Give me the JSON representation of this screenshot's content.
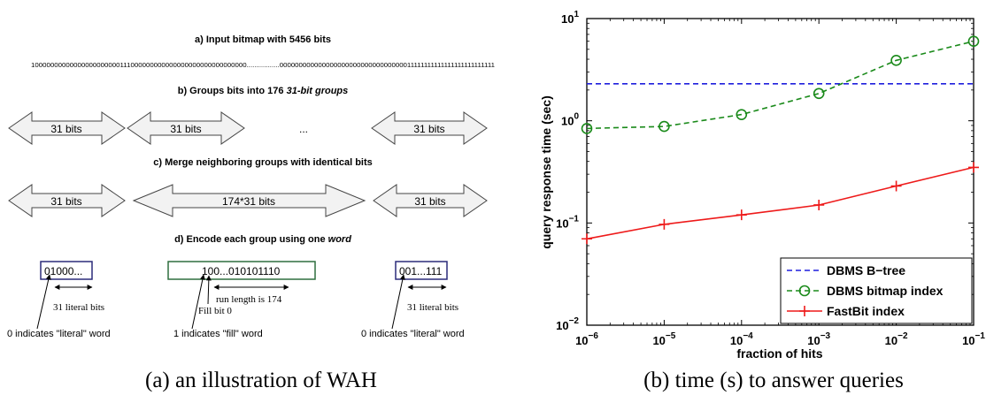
{
  "wah": {
    "step_a": "a) Input bitmap with 5456 bits",
    "bitstring": "10000000000000000000000111000000000000000000000000000000.................00000000000000000000000000000000011111111111111111111111111",
    "step_b_prefix": "b) Groups bits into 176 ",
    "step_b_emph": "31-bit groups",
    "group_31": "31 bits",
    "ellipsis": "...",
    "step_c": "c) Merge neighboring groups with identical bits",
    "merged": "174*31 bits",
    "step_d_prefix": "d) Encode each group using one ",
    "step_d_emph": "word",
    "word_left": "01000...",
    "word_middle": "100...010101110",
    "word_right": "001...111",
    "literal_bits": "31 literal bits",
    "run_length": "run length is 174",
    "fill_bit": "Fill bit 0",
    "literal_note": "0 indicates \"literal\" word",
    "fill_note": "1 indicates \"fill\" word",
    "colors": {
      "word_left_border": "#2b2b7a",
      "word_middle_border": "#2f6f3f",
      "word_right_border": "#2b2b7a",
      "arrow_fill": "#f2f2f2"
    }
  },
  "captions": {
    "left": "(a) an illustration of WAH",
    "right": "(b) time (s) to answer queries"
  },
  "chart_data": {
    "type": "line",
    "xlabel": "fraction of hits",
    "ylabel": "query response time (sec)",
    "xscale": "log",
    "yscale": "log",
    "xlim": [
      1e-06,
      0.1
    ],
    "ylim": [
      0.01,
      10
    ],
    "grid": false,
    "legend": "bottom-right",
    "x": [
      1e-06,
      1e-05,
      0.0001,
      0.001,
      0.01,
      0.1
    ],
    "xticks": [
      {
        "base": "10",
        "exp": "−6"
      },
      {
        "base": "10",
        "exp": "−5"
      },
      {
        "base": "10",
        "exp": "−4"
      },
      {
        "base": "10",
        "exp": "−3"
      },
      {
        "base": "10",
        "exp": "−2"
      },
      {
        "base": "10",
        "exp": "−1"
      }
    ],
    "yticks": [
      {
        "base": "10",
        "exp": "−2"
      },
      {
        "base": "10",
        "exp": "−1"
      },
      {
        "base": "10",
        "exp": "0"
      },
      {
        "base": "10",
        "exp": "1"
      }
    ],
    "series": [
      {
        "name": "DBMS B−tree",
        "values": [
          2.3,
          2.3,
          2.3,
          2.3,
          2.3,
          2.3
        ],
        "color": "#1f1fdd",
        "dash": "dashed",
        "marker": "none"
      },
      {
        "name": "DBMS bitmap index",
        "values": [
          0.84,
          0.88,
          1.15,
          1.85,
          3.9,
          6.0
        ],
        "color": "#1a8a1a",
        "dash": "dashed",
        "marker": "circle"
      },
      {
        "name": "FastBit index",
        "values": [
          0.07,
          0.097,
          0.12,
          0.15,
          0.23,
          0.35
        ],
        "color": "#ee1a1a",
        "dash": "solid",
        "marker": "plus"
      }
    ]
  }
}
